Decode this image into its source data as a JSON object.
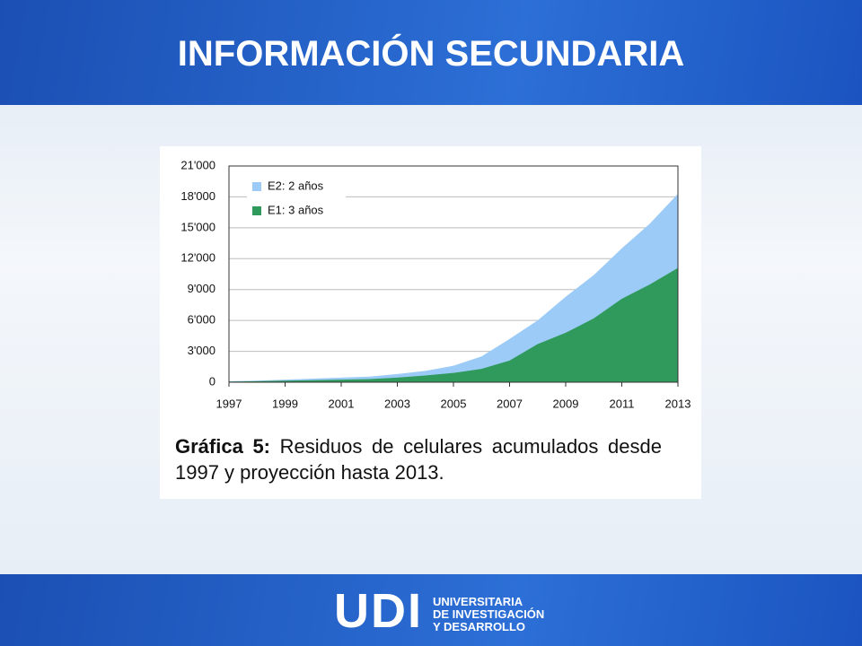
{
  "title": "INFORMACIÓN SECUNDARIA",
  "chart_data": {
    "type": "area",
    "x": [
      1997,
      1998,
      1999,
      2000,
      2001,
      2002,
      2003,
      2004,
      2005,
      2006,
      2007,
      2008,
      2009,
      2010,
      2011,
      2012,
      2013
    ],
    "series": [
      {
        "name": "E2: 2 años",
        "color": "#9dcbf7",
        "values": [
          100,
          150,
          250,
          350,
          450,
          550,
          800,
          1100,
          1600,
          2500,
          4200,
          6000,
          8300,
          10400,
          13000,
          15400,
          18300
        ]
      },
      {
        "name": "E1: 3 años",
        "color": "#2f9a5c",
        "values": [
          50,
          100,
          150,
          200,
          250,
          300,
          450,
          650,
          900,
          1300,
          2100,
          3700,
          4800,
          6200,
          8100,
          9500,
          11100
        ]
      }
    ],
    "xlim": [
      1997,
      2013
    ],
    "xticks": [
      1997,
      1999,
      2001,
      2003,
      2005,
      2007,
      2009,
      2011,
      2013
    ],
    "ylim": [
      0,
      21000
    ],
    "yticks": [
      0,
      {
        "value": 3000,
        "label": "3'000"
      },
      {
        "value": 6000,
        "label": "6'000"
      },
      {
        "value": 9000,
        "label": "9'000"
      },
      {
        "value": 12000,
        "label": "12'000"
      },
      {
        "value": 15000,
        "label": "15'000"
      },
      {
        "value": 18000,
        "label": "18'000"
      },
      {
        "value": 21000,
        "label": "21'000"
      }
    ],
    "grid": true,
    "legend": "upper left"
  },
  "caption": {
    "label": "Gráfica 5:",
    "text": "Residuos de celulares acumulados desde 1997 y proyección hasta 2013."
  },
  "logo": {
    "mark": "UDI",
    "lines": [
      "UNIVERSITARIA",
      "DE INVESTIGACIÓN",
      "Y DESARROLLO"
    ]
  }
}
